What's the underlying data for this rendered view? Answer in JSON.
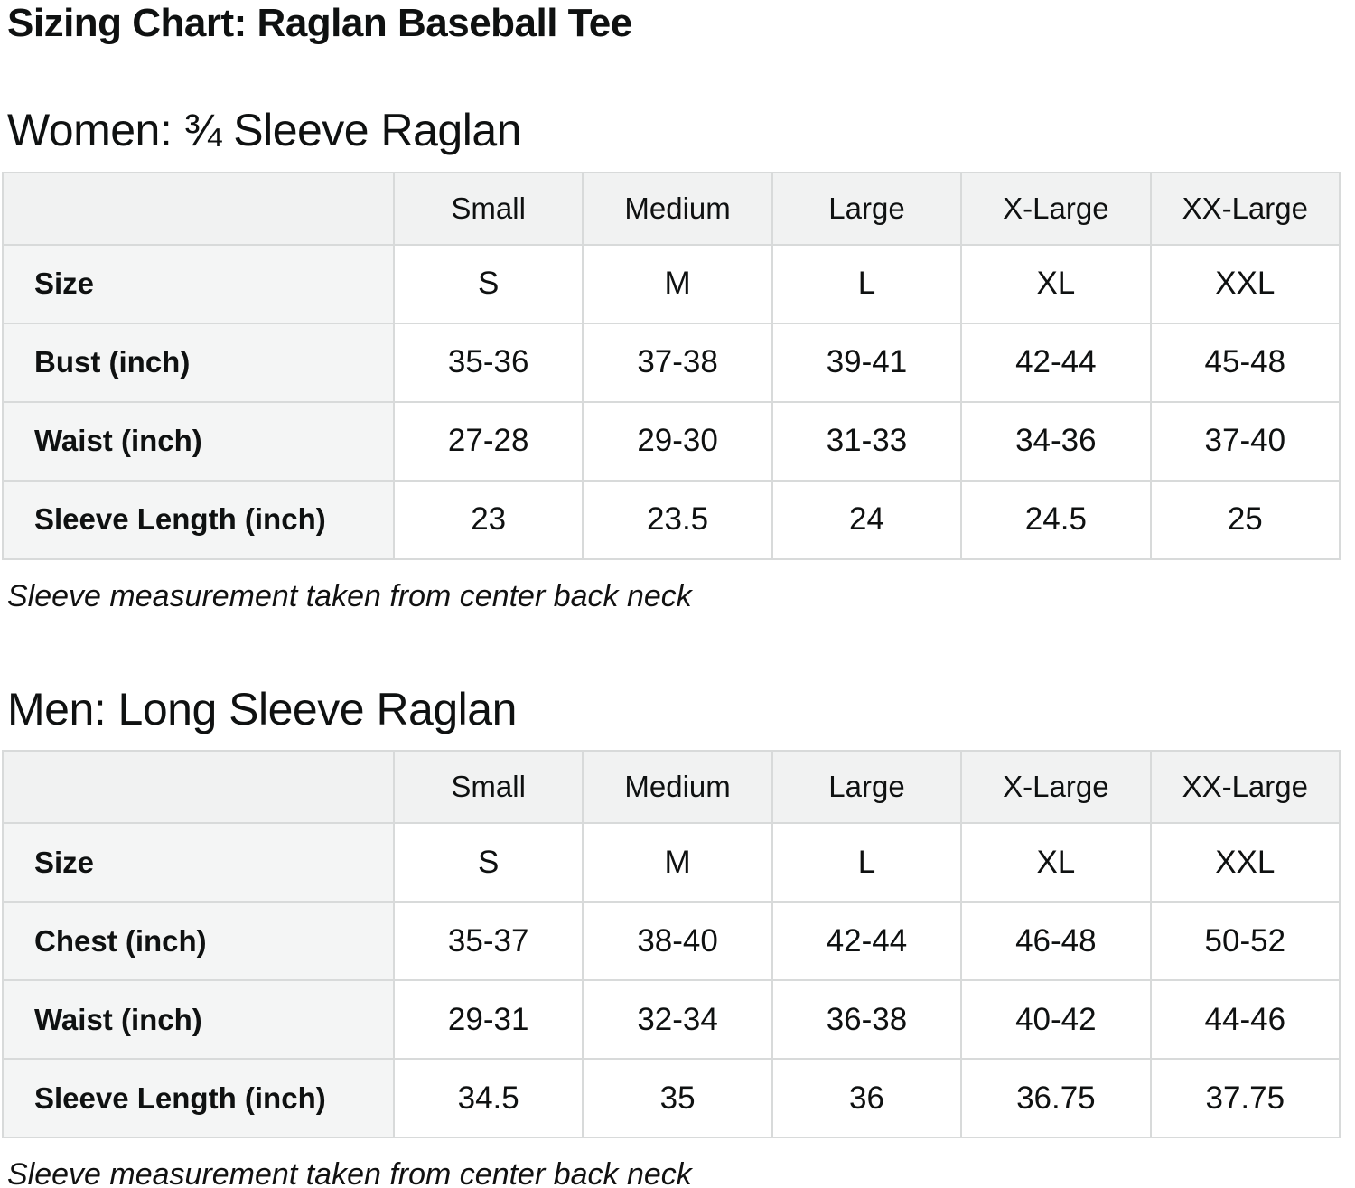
{
  "page": {
    "title": "Sizing Chart: Raglan Baseball Tee"
  },
  "colors": {
    "header_cell_bg": "#f1f2f2",
    "label_cell_bg": "#f4f5f5",
    "data_cell_bg": "#ffffff",
    "border": "#d8dada",
    "text": "#0f1111"
  },
  "sections": [
    {
      "heading": "Women: ¾ Sleeve Raglan",
      "note": "Sleeve measurement taken from center back neck",
      "table": {
        "columns": [
          "Small",
          "Medium",
          "Large",
          "X-Large",
          "XX-Large"
        ],
        "rows": [
          {
            "label": "Size",
            "values": [
              "S",
              "M",
              "L",
              "XL",
              "XXL"
            ]
          },
          {
            "label": "Bust (inch)",
            "values": [
              "35-36",
              "37-38",
              "39-41",
              "42-44",
              "45-48"
            ]
          },
          {
            "label": "Waist (inch)",
            "values": [
              "27-28",
              "29-30",
              "31-33",
              "34-36",
              "37-40"
            ]
          },
          {
            "label": "Sleeve Length (inch)",
            "values": [
              "23",
              "23.5",
              "24",
              "24.5",
              "25"
            ]
          }
        ]
      }
    },
    {
      "heading": "Men: Long Sleeve Raglan",
      "note": "Sleeve measurement taken from center back neck",
      "table": {
        "columns": [
          "Small",
          "Medium",
          "Large",
          "X-Large",
          "XX-Large"
        ],
        "rows": [
          {
            "label": "Size",
            "values": [
              "S",
              "M",
              "L",
              "XL",
              "XXL"
            ]
          },
          {
            "label": "Chest (inch)",
            "values": [
              "35-37",
              "38-40",
              "42-44",
              "46-48",
              "50-52"
            ]
          },
          {
            "label": "Waist (inch)",
            "values": [
              "29-31",
              "32-34",
              "36-38",
              "40-42",
              "44-46"
            ]
          },
          {
            "label": "Sleeve Length (inch)",
            "values": [
              "34.5",
              "35",
              "36",
              "36.75",
              "37.75"
            ]
          }
        ]
      }
    }
  ]
}
